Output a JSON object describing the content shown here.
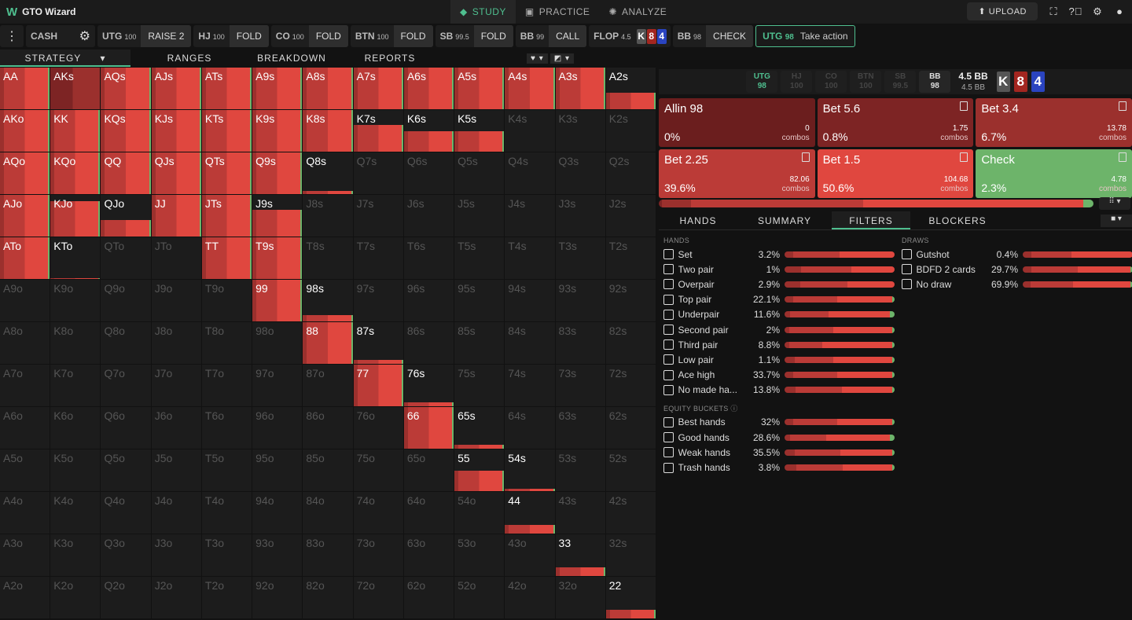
{
  "app": {
    "logo": "W",
    "title": "GTO Wizard"
  },
  "nav": [
    {
      "label": "STUDY",
      "icon": "graduation-cap-icon",
      "active": true
    },
    {
      "label": "PRACTICE",
      "icon": "gamepad-icon"
    },
    {
      "label": "ANALYZE",
      "icon": "lightbulb-icon"
    }
  ],
  "topright": {
    "upload": "UPLOAD"
  },
  "actionbar": {
    "game": "CASH",
    "steps": [
      {
        "pos": "UTG",
        "stack": "100",
        "action": "RAISE 2"
      },
      {
        "pos": "HJ",
        "stack": "100",
        "action": "FOLD"
      },
      {
        "pos": "CO",
        "stack": "100",
        "action": "FOLD"
      },
      {
        "pos": "BTN",
        "stack": "100",
        "action": "FOLD"
      },
      {
        "pos": "SB",
        "stack": "99.5",
        "action": "FOLD"
      },
      {
        "pos": "BB",
        "stack": "99",
        "action": "CALL"
      }
    ],
    "flop": {
      "label": "FLOP",
      "pot": "4.5",
      "cards": [
        "K",
        "8",
        "4"
      ]
    },
    "bb_step": {
      "pos": "BB",
      "stack": "98",
      "action": "CHECK"
    },
    "current": {
      "pos": "UTG",
      "stack": "98",
      "text": "Take action"
    }
  },
  "colors": {
    "accent": "#4fbf8f",
    "allin": "#6b1e1e",
    "bet56": "#7d2424",
    "bet34": "#9b302d",
    "bet225": "#bb3b37",
    "bet15": "#e0473f",
    "check": "#6db46a",
    "card_k": "#555555",
    "card_8": "#a32620",
    "card_4": "#2a44c0"
  },
  "tabs": [
    "STRATEGY",
    "RANGES",
    "BREAKDOWN",
    "REPORTS"
  ],
  "grid": {
    "hands": [
      [
        "AA",
        "AKs",
        "AQs",
        "AJs",
        "ATs",
        "A9s",
        "A8s",
        "A7s",
        "A6s",
        "A5s",
        "A4s",
        "A3s",
        "A2s"
      ],
      [
        "AKo",
        "KK",
        "KQs",
        "KJs",
        "KTs",
        "K9s",
        "K8s",
        "K7s",
        "K6s",
        "K5s",
        "K4s",
        "K3s",
        "K2s"
      ],
      [
        "AQo",
        "KQo",
        "QQ",
        "QJs",
        "QTs",
        "Q9s",
        "Q8s",
        "Q7s",
        "Q6s",
        "Q5s",
        "Q4s",
        "Q3s",
        "Q2s"
      ],
      [
        "AJo",
        "KJo",
        "QJo",
        "JJ",
        "JTs",
        "J9s",
        "J8s",
        "J7s",
        "J6s",
        "J5s",
        "J4s",
        "J3s",
        "J2s"
      ],
      [
        "ATo",
        "KTo",
        "QTo",
        "JTo",
        "TT",
        "T9s",
        "T8s",
        "T7s",
        "T6s",
        "T5s",
        "T4s",
        "T3s",
        "T2s"
      ],
      [
        "A9o",
        "K9o",
        "Q9o",
        "J9o",
        "T9o",
        "99",
        "98s",
        "97s",
        "96s",
        "95s",
        "94s",
        "93s",
        "92s"
      ],
      [
        "A8o",
        "K8o",
        "Q8o",
        "J8o",
        "T8o",
        "98o",
        "88",
        "87s",
        "86s",
        "85s",
        "84s",
        "83s",
        "82s"
      ],
      [
        "A7o",
        "K7o",
        "Q7o",
        "J7o",
        "T7o",
        "97o",
        "87o",
        "77",
        "76s",
        "75s",
        "74s",
        "73s",
        "72s"
      ],
      [
        "A6o",
        "K6o",
        "Q6o",
        "J6o",
        "T6o",
        "96o",
        "86o",
        "76o",
        "66",
        "65s",
        "64s",
        "63s",
        "62s"
      ],
      [
        "A5o",
        "K5o",
        "Q5o",
        "J5o",
        "T5o",
        "95o",
        "85o",
        "75o",
        "65o",
        "55",
        "54s",
        "53s",
        "52s"
      ],
      [
        "A4o",
        "K4o",
        "Q4o",
        "J4o",
        "T4o",
        "94o",
        "84o",
        "74o",
        "64o",
        "54o",
        "44",
        "43s",
        "42s"
      ],
      [
        "A3o",
        "K3o",
        "Q3o",
        "J3o",
        "T3o",
        "93o",
        "83o",
        "73o",
        "63o",
        "53o",
        "43o",
        "33",
        "32s"
      ],
      [
        "A2o",
        "K2o",
        "Q2o",
        "J2o",
        "T2o",
        "92o",
        "82o",
        "72o",
        "62o",
        "52o",
        "42o",
        "32o",
        "22"
      ]
    ],
    "weights": [
      [
        1,
        1,
        1,
        1,
        1,
        1,
        1,
        1,
        1,
        1,
        1,
        1,
        0.4
      ],
      [
        1,
        1,
        1,
        1,
        1,
        1,
        1,
        0.65,
        0.5,
        0.5,
        0,
        0,
        0
      ],
      [
        1,
        1,
        1,
        1,
        1,
        1,
        0.08,
        0,
        0,
        0,
        0,
        0,
        0
      ],
      [
        1,
        0.85,
        0.4,
        1,
        1,
        0.65,
        0,
        0,
        0,
        0,
        0,
        0,
        0
      ],
      [
        1,
        0.01,
        0,
        0,
        1,
        1,
        0,
        0,
        0,
        0,
        0,
        0,
        0
      ],
      [
        0,
        0,
        0,
        0,
        0,
        1,
        0.15,
        0,
        0,
        0,
        0,
        0,
        0
      ],
      [
        0,
        0,
        0,
        0,
        0,
        0,
        1,
        0.1,
        0,
        0,
        0,
        0,
        0
      ],
      [
        0,
        0,
        0,
        0,
        0,
        0,
        0,
        1,
        0.1,
        0,
        0,
        0,
        0
      ],
      [
        0,
        0,
        0,
        0,
        0,
        0,
        0,
        0,
        1,
        0.1,
        0,
        0,
        0
      ],
      [
        0,
        0,
        0,
        0,
        0,
        0,
        0,
        0,
        0,
        0.5,
        0.05,
        0,
        0
      ],
      [
        0,
        0,
        0,
        0,
        0,
        0,
        0,
        0,
        0,
        0,
        0.2,
        0,
        0
      ],
      [
        0,
        0,
        0,
        0,
        0,
        0,
        0,
        0,
        0,
        0,
        0,
        0.2,
        0
      ],
      [
        0,
        0,
        0,
        0,
        0,
        0,
        0,
        0,
        0,
        0,
        0,
        0,
        0.2
      ]
    ]
  },
  "board": {
    "positions": [
      {
        "pos": "UTG",
        "stack": "98"
      },
      {
        "pos": "HJ",
        "stack": "100"
      },
      {
        "pos": "CO",
        "stack": "100"
      },
      {
        "pos": "BTN",
        "stack": "100"
      },
      {
        "pos": "SB",
        "stack": "99.5"
      },
      {
        "pos": "BB",
        "stack": "98"
      }
    ],
    "pot": "4.5 BB",
    "pot2": "4.5 BB",
    "cards": [
      "K",
      "8",
      "4"
    ]
  },
  "actions": [
    {
      "name": "Allin 98",
      "pct": "0%",
      "combos": "0",
      "combos_label": "combos",
      "color": "#6b1e1e",
      "freq": 0
    },
    {
      "name": "Bet 5.6",
      "pct": "0.8%",
      "combos": "1.75",
      "combos_label": "combos",
      "color": "#7d2424",
      "freq": 0.8
    },
    {
      "name": "Bet 3.4",
      "pct": "6.7%",
      "combos": "13.78",
      "combos_label": "combos",
      "color": "#9b302d",
      "freq": 6.7
    },
    {
      "name": "Bet 2.25",
      "pct": "39.6%",
      "combos": "82.06",
      "combos_label": "combos",
      "color": "#bb3b37",
      "freq": 39.6
    },
    {
      "name": "Bet 1.5",
      "pct": "50.6%",
      "combos": "104.68",
      "combos_label": "combos",
      "color": "#e0473f",
      "freq": 50.6
    },
    {
      "name": "Check",
      "pct": "2.3%",
      "combos": "4.78",
      "combos_label": "combos",
      "color": "#6db46a",
      "freq": 2.3
    }
  ],
  "subtabs": [
    "HANDS",
    "SUMMARY",
    "FILTERS",
    "BLOCKERS"
  ],
  "filters": {
    "hands_title": "HANDS",
    "hands": [
      {
        "label": "Set",
        "pct": "3.2%",
        "mix": [
          8,
          42,
          50,
          0
        ]
      },
      {
        "label": "Two pair",
        "pct": "1%",
        "mix": [
          15,
          46,
          39,
          0
        ]
      },
      {
        "label": "Overpair",
        "pct": "2.9%",
        "mix": [
          14,
          43,
          43,
          0
        ]
      },
      {
        "label": "Top pair",
        "pct": "22.1%",
        "mix": [
          8,
          40,
          50,
          2
        ]
      },
      {
        "label": "Underpair",
        "pct": "11.6%",
        "mix": [
          5,
          35,
          56,
          4
        ]
      },
      {
        "label": "Second pair",
        "pct": "2%",
        "mix": [
          4,
          40,
          54,
          2
        ]
      },
      {
        "label": "Third pair",
        "pct": "8.8%",
        "mix": [
          4,
          30,
          64,
          2
        ]
      },
      {
        "label": "Low pair",
        "pct": "1.1%",
        "mix": [
          9,
          35,
          54,
          2
        ]
      },
      {
        "label": "Ace high",
        "pct": "33.7%",
        "mix": [
          8,
          40,
          50,
          2
        ]
      },
      {
        "label": "No made ha...",
        "pct": "13.8%",
        "mix": [
          10,
          42,
          46,
          2
        ]
      }
    ],
    "equity_title": "EQUITY BUCKETS",
    "equity": [
      {
        "label": "Best hands",
        "pct": "32%",
        "mix": [
          8,
          40,
          50,
          2
        ]
      },
      {
        "label": "Good hands",
        "pct": "28.6%",
        "mix": [
          5,
          33,
          58,
          4
        ]
      },
      {
        "label": "Weak hands",
        "pct": "35.5%",
        "mix": [
          9,
          42,
          47,
          2
        ]
      },
      {
        "label": "Trash hands",
        "pct": "3.8%",
        "mix": [
          11,
          42,
          45,
          2
        ]
      }
    ],
    "draws_title": "DRAWS",
    "draws": [
      {
        "label": "Gutshot",
        "pct": "0.4%",
        "mix": [
          8,
          36,
          56,
          0
        ]
      },
      {
        "label": "BDFD 2 cards",
        "pct": "29.7%",
        "mix": [
          8,
          42,
          48,
          2
        ]
      },
      {
        "label": "No draw",
        "pct": "69.9%",
        "mix": [
          7,
          39,
          52,
          2
        ]
      }
    ]
  }
}
